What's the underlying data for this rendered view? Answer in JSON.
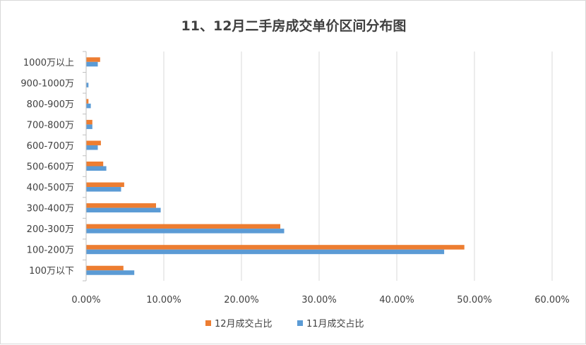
{
  "chart_data": {
    "type": "bar",
    "orientation": "horizontal",
    "title": "11、12月二手房成交单价区间分布图",
    "xlabel": "",
    "ylabel": "",
    "categories": [
      "100万以下",
      "100-200万",
      "200-300万",
      "300-400万",
      "400-500万",
      "500-600万",
      "600-700万",
      "700-800万",
      "800-900万",
      "900-1000万",
      "1000万以上"
    ],
    "series": [
      {
        "name": "12月成交占比",
        "color": "#ed7d31",
        "values": [
          4.8,
          48.7,
          25.0,
          9.0,
          4.9,
          2.2,
          1.9,
          0.8,
          0.3,
          0.0,
          1.8
        ]
      },
      {
        "name": "11月成交占比",
        "color": "#5b9bd5",
        "values": [
          6.2,
          46.1,
          25.5,
          9.6,
          4.5,
          2.6,
          1.5,
          0.8,
          0.6,
          0.3,
          1.5
        ]
      }
    ],
    "xlim": [
      0,
      60
    ],
    "xticks": [
      "0.00%",
      "10.00%",
      "20.00%",
      "30.00%",
      "40.00%",
      "50.00%",
      "60.00%"
    ],
    "grid": true,
    "legend_position": "bottom"
  }
}
